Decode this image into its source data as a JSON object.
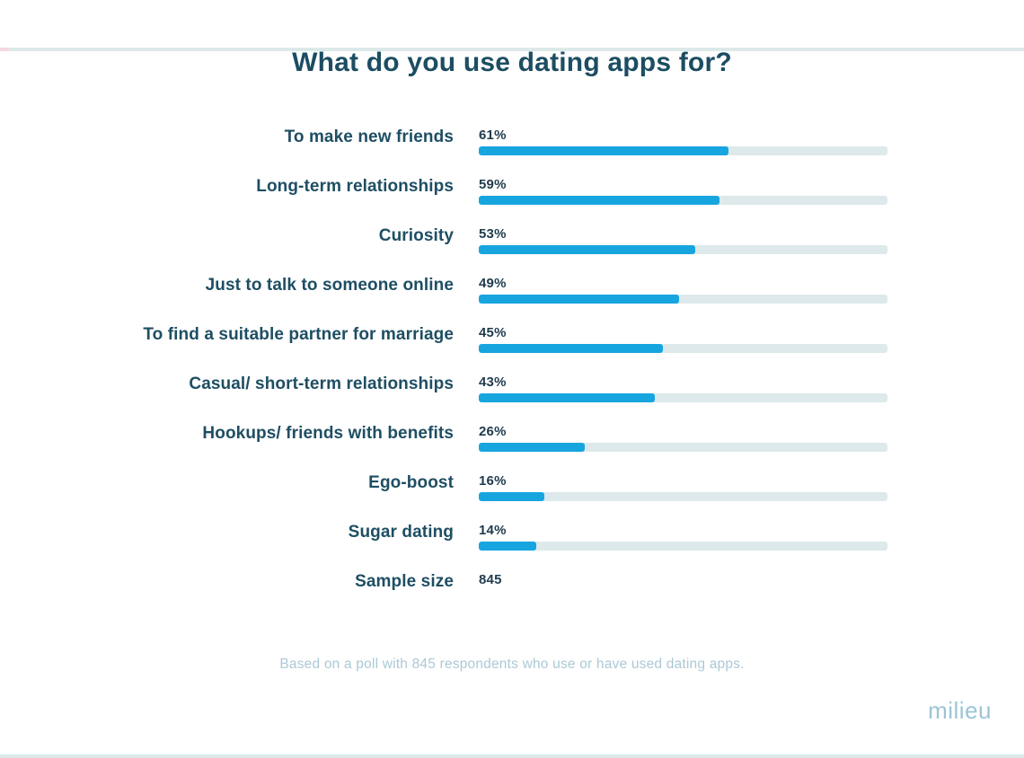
{
  "title": "What do you use dating apps for?",
  "footnote": "Based on a poll with 845 respondents who use or have used dating apps.",
  "brand": "milieu",
  "colors": {
    "page_bg": "#ffffff",
    "bar_fill": "#17a5e0",
    "bar_track": "#dde9ea",
    "title_text": "#1c4d62",
    "label_text": "#1e4e63",
    "value_text": "#1f3b4d",
    "footnote_text": "#abc9d6",
    "logo_text": "#9cc4d4",
    "edge_strip": "#dce9e9",
    "edge_accent": "#f2d9df"
  },
  "chart_data": {
    "type": "bar",
    "orientation": "horizontal",
    "title": "What do you use dating apps for?",
    "categories": [
      "To make new friends",
      "Long-term relationships",
      "Curiosity",
      "Just to talk to someone online",
      "To find a suitable partner for marriage",
      "Casual/ short-term relationships",
      "Hookups/ friends with benefits",
      "Ego-boost",
      "Sugar dating"
    ],
    "values": [
      61,
      59,
      53,
      49,
      45,
      43,
      26,
      16,
      14
    ],
    "value_suffix": "%",
    "xlim": [
      0,
      100
    ],
    "grid": false,
    "legend": "none",
    "sample_size_label": "Sample size",
    "sample_size_value": "845",
    "rows": [
      {
        "label": "To make new friends",
        "value": 61,
        "value_label": "61%",
        "has_bar": true
      },
      {
        "label": "Long-term relationships",
        "value": 59,
        "value_label": "59%",
        "has_bar": true
      },
      {
        "label": "Curiosity",
        "value": 53,
        "value_label": "53%",
        "has_bar": true
      },
      {
        "label": "Just to talk to someone online",
        "value": 49,
        "value_label": "49%",
        "has_bar": true
      },
      {
        "label": "To find a suitable partner for marriage",
        "value": 45,
        "value_label": "45%",
        "has_bar": true
      },
      {
        "label": "Casual/ short-term relationships",
        "value": 43,
        "value_label": "43%",
        "has_bar": true
      },
      {
        "label": "Hookups/ friends with benefits",
        "value": 26,
        "value_label": "26%",
        "has_bar": true
      },
      {
        "label": "Ego-boost",
        "value": 16,
        "value_label": "16%",
        "has_bar": true
      },
      {
        "label": "Sugar dating",
        "value": 14,
        "value_label": "14%",
        "has_bar": true
      },
      {
        "label": "Sample size",
        "value": null,
        "value_label": "845",
        "has_bar": false
      }
    ]
  }
}
